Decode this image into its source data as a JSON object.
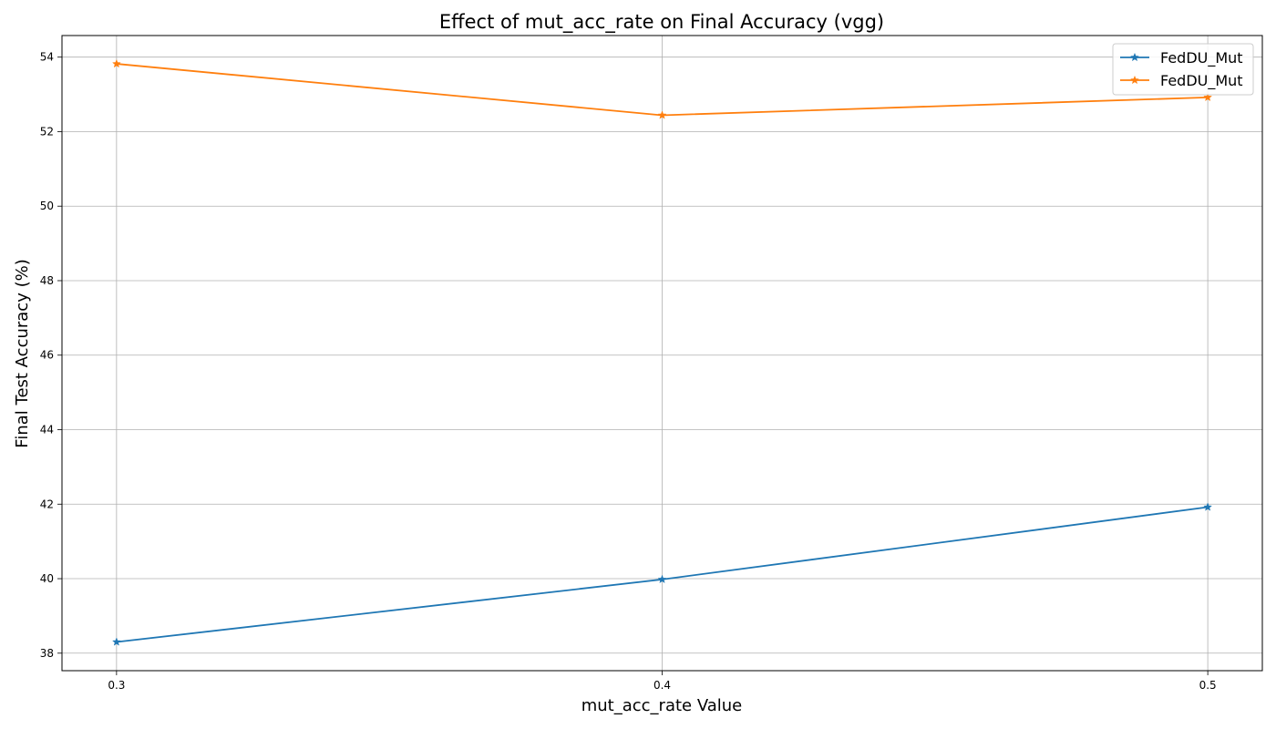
{
  "chart_data": {
    "type": "line",
    "title": "Effect of mut_acc_rate on Final Accuracy (vgg)",
    "xlabel": "mut_acc_rate Value",
    "ylabel": "Final Test Accuracy (%)",
    "x": [
      0.3,
      0.4,
      0.5
    ],
    "xticks": [
      "0.3",
      "0.4",
      "0.5"
    ],
    "xlim": [
      0.29,
      0.51
    ],
    "ylim": [
      37.53,
      54.58
    ],
    "yticks": [
      38,
      40,
      42,
      44,
      46,
      48,
      50,
      52,
      54
    ],
    "grid": true,
    "legend_position": "top-right",
    "series": [
      {
        "name": "FedDU_Mut",
        "color": "#1f77b4",
        "marker": "star",
        "values": [
          38.3,
          39.98,
          41.92
        ]
      },
      {
        "name": "FedDU_Mut",
        "color": "#ff7f0e",
        "marker": "star",
        "values": [
          53.82,
          52.44,
          52.92
        ]
      }
    ]
  }
}
